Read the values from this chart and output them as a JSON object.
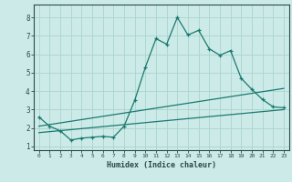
{
  "xlabel": "Humidex (Indice chaleur)",
  "background_color": "#cceae8",
  "grid_color": "#aad4d0",
  "line_color": "#1a7a6e",
  "axis_color": "#2a4a48",
  "xlim": [
    -0.5,
    23.5
  ],
  "ylim": [
    0.8,
    8.7
  ],
  "xticks": [
    0,
    1,
    2,
    3,
    4,
    5,
    6,
    7,
    8,
    9,
    10,
    11,
    12,
    13,
    14,
    15,
    16,
    17,
    18,
    19,
    20,
    21,
    22,
    23
  ],
  "yticks": [
    1,
    2,
    3,
    4,
    5,
    6,
    7,
    8
  ],
  "series1_x": [
    0,
    1,
    2,
    3,
    4,
    5,
    6,
    7,
    8,
    9,
    10,
    11,
    12,
    13,
    14,
    15,
    16,
    17,
    18,
    19,
    20,
    21,
    22,
    23
  ],
  "series1_y": [
    2.6,
    2.1,
    1.85,
    1.35,
    1.45,
    1.5,
    1.55,
    1.5,
    2.1,
    3.5,
    5.3,
    6.85,
    6.55,
    8.0,
    7.05,
    7.3,
    6.3,
    5.95,
    6.2,
    4.7,
    4.1,
    3.55,
    3.15,
    3.1
  ],
  "series2_x": [
    0,
    23
  ],
  "series2_y": [
    2.1,
    4.15
  ],
  "series3_x": [
    0,
    23
  ],
  "series3_y": [
    1.75,
    3.0
  ]
}
